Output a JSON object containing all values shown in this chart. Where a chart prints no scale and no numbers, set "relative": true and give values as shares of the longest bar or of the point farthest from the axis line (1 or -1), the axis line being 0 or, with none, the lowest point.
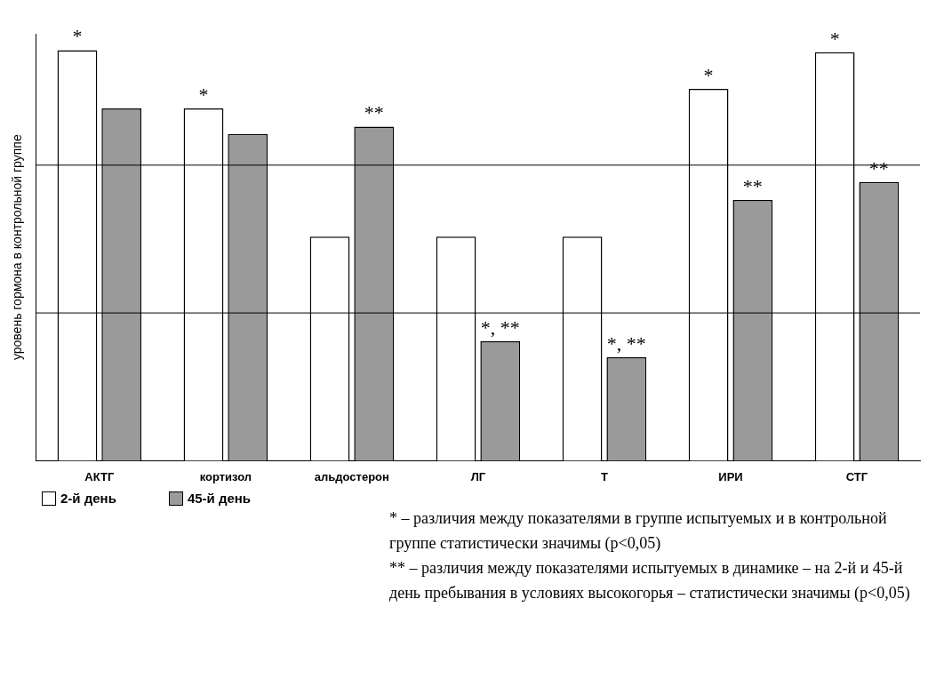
{
  "chart_data": {
    "type": "bar",
    "relative": true,
    "ylabel": "уровень гормона в контрольной группе",
    "categories": [
      "АКТГ",
      "кортизол",
      "альдостерон",
      "ЛГ",
      "Т",
      "ИРИ",
      "СТГ"
    ],
    "series": [
      {
        "name": "2-й день",
        "color": "#ffffff",
        "values": [
          1,
          0.858,
          0.546,
          0.546,
          0.546,
          0.906,
          0.995
        ]
      },
      {
        "name": "45-й день",
        "color": "#9a9a9a",
        "values": [
          0.858,
          0.796,
          0.814,
          0.291,
          0.252,
          0.635,
          0.679
        ]
      }
    ],
    "ref_lines": [
      {
        "axis": "y",
        "value": 0.72,
        "color": "#000000"
      },
      {
        "axis": "y",
        "value": 0.36,
        "color": "#000000"
      }
    ],
    "legend": "bottom left",
    "annotations": [
      {
        "text": "*",
        "x": "АКТГ",
        "y": 1
      },
      {
        "text": "*",
        "x": "кортизол",
        "y": 0.858
      },
      {
        "text": "**",
        "x": "альдостерон",
        "y": 0.814
      },
      {
        "text": "*, **",
        "x": "ЛГ",
        "y": 0.291
      },
      {
        "text": "*, **",
        "x": "Т",
        "y": 0.252
      },
      {
        "text": "*",
        "x": "ИРИ",
        "y": 0.906
      },
      {
        "text": "**",
        "x": "ИРИ",
        "y": 0.635
      },
      {
        "text": "*",
        "x": "СТГ",
        "y": 0.995
      },
      {
        "text": "**",
        "x": "СТГ",
        "y": 0.679
      },
      "* – различия между показателями в группе испытуемых и в контрольной группе статистически значимы (p<0,05)",
      "** – различия между показателями испытуемых в динамике – на 2-й и 45-й день пребывания в условиях высокогорья – статистически значимы (p<0,05)"
    ]
  }
}
